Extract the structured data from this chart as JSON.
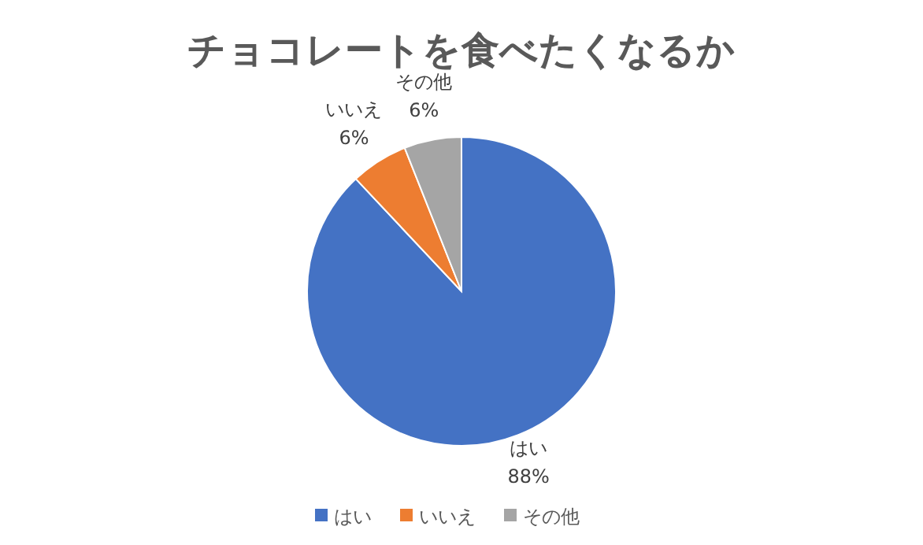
{
  "chart_data": {
    "type": "pie",
    "title": "チョコレートを食べたくなるか",
    "categories": [
      "はい",
      "いいえ",
      "その他"
    ],
    "values": [
      88,
      6,
      6
    ],
    "colors": [
      "#4472c4",
      "#ed7d31",
      "#a5a5a5"
    ],
    "value_labels": [
      "88%",
      "6%",
      "6%"
    ],
    "legend": "bottom"
  }
}
